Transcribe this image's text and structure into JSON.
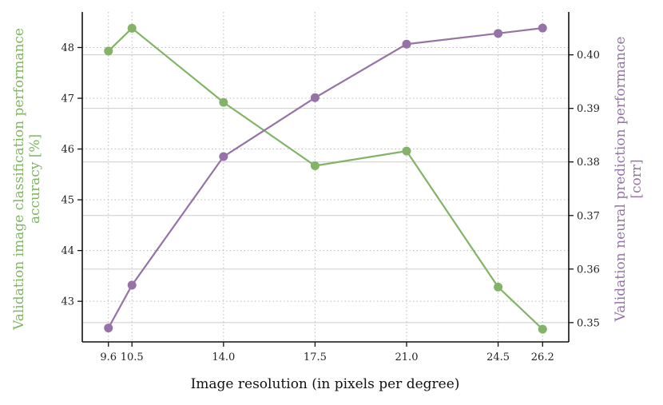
{
  "chart_data": {
    "type": "line",
    "x": [
      9.6,
      10.5,
      14.0,
      17.5,
      21.0,
      24.5,
      26.2
    ],
    "xlabel": "Image resolution (in pixels per degree)",
    "xticks": [
      "9.6",
      "10.5",
      "14.0",
      "17.5",
      "21.0",
      "24.5",
      "26.2"
    ],
    "xlim": [
      8.6,
      27.2
    ],
    "grid": true,
    "legend": "none",
    "series": [
      {
        "axis": "left",
        "color": "#82b366",
        "values": [
          47.93,
          48.38,
          46.92,
          45.67,
          45.96,
          43.28,
          42.45
        ]
      },
      {
        "axis": "right",
        "color": "#9673a6",
        "values": [
          0.349,
          0.357,
          0.381,
          0.392,
          0.402,
          0.404,
          0.405
        ]
      }
    ],
    "y_left": {
      "label_line1": "Validation image classification performance",
      "label_line2": "accuracy [%]",
      "color": "#82b366",
      "ylim": [
        42.2,
        48.7
      ],
      "ticks": [
        43,
        44,
        45,
        46,
        47,
        48
      ],
      "tick_labels": [
        "43",
        "44",
        "45",
        "46",
        "47",
        "48"
      ]
    },
    "y_right": {
      "label_line1": "Validation neural prediction performance",
      "label_line2": "[corr]",
      "color": "#9673a6",
      "ylim": [
        0.3464,
        0.408
      ],
      "ticks": [
        0.35,
        0.36,
        0.37,
        0.38,
        0.39,
        0.4
      ],
      "tick_labels": [
        "0.35",
        "0.36",
        "0.37",
        "0.38",
        "0.39",
        "0.40"
      ]
    }
  }
}
